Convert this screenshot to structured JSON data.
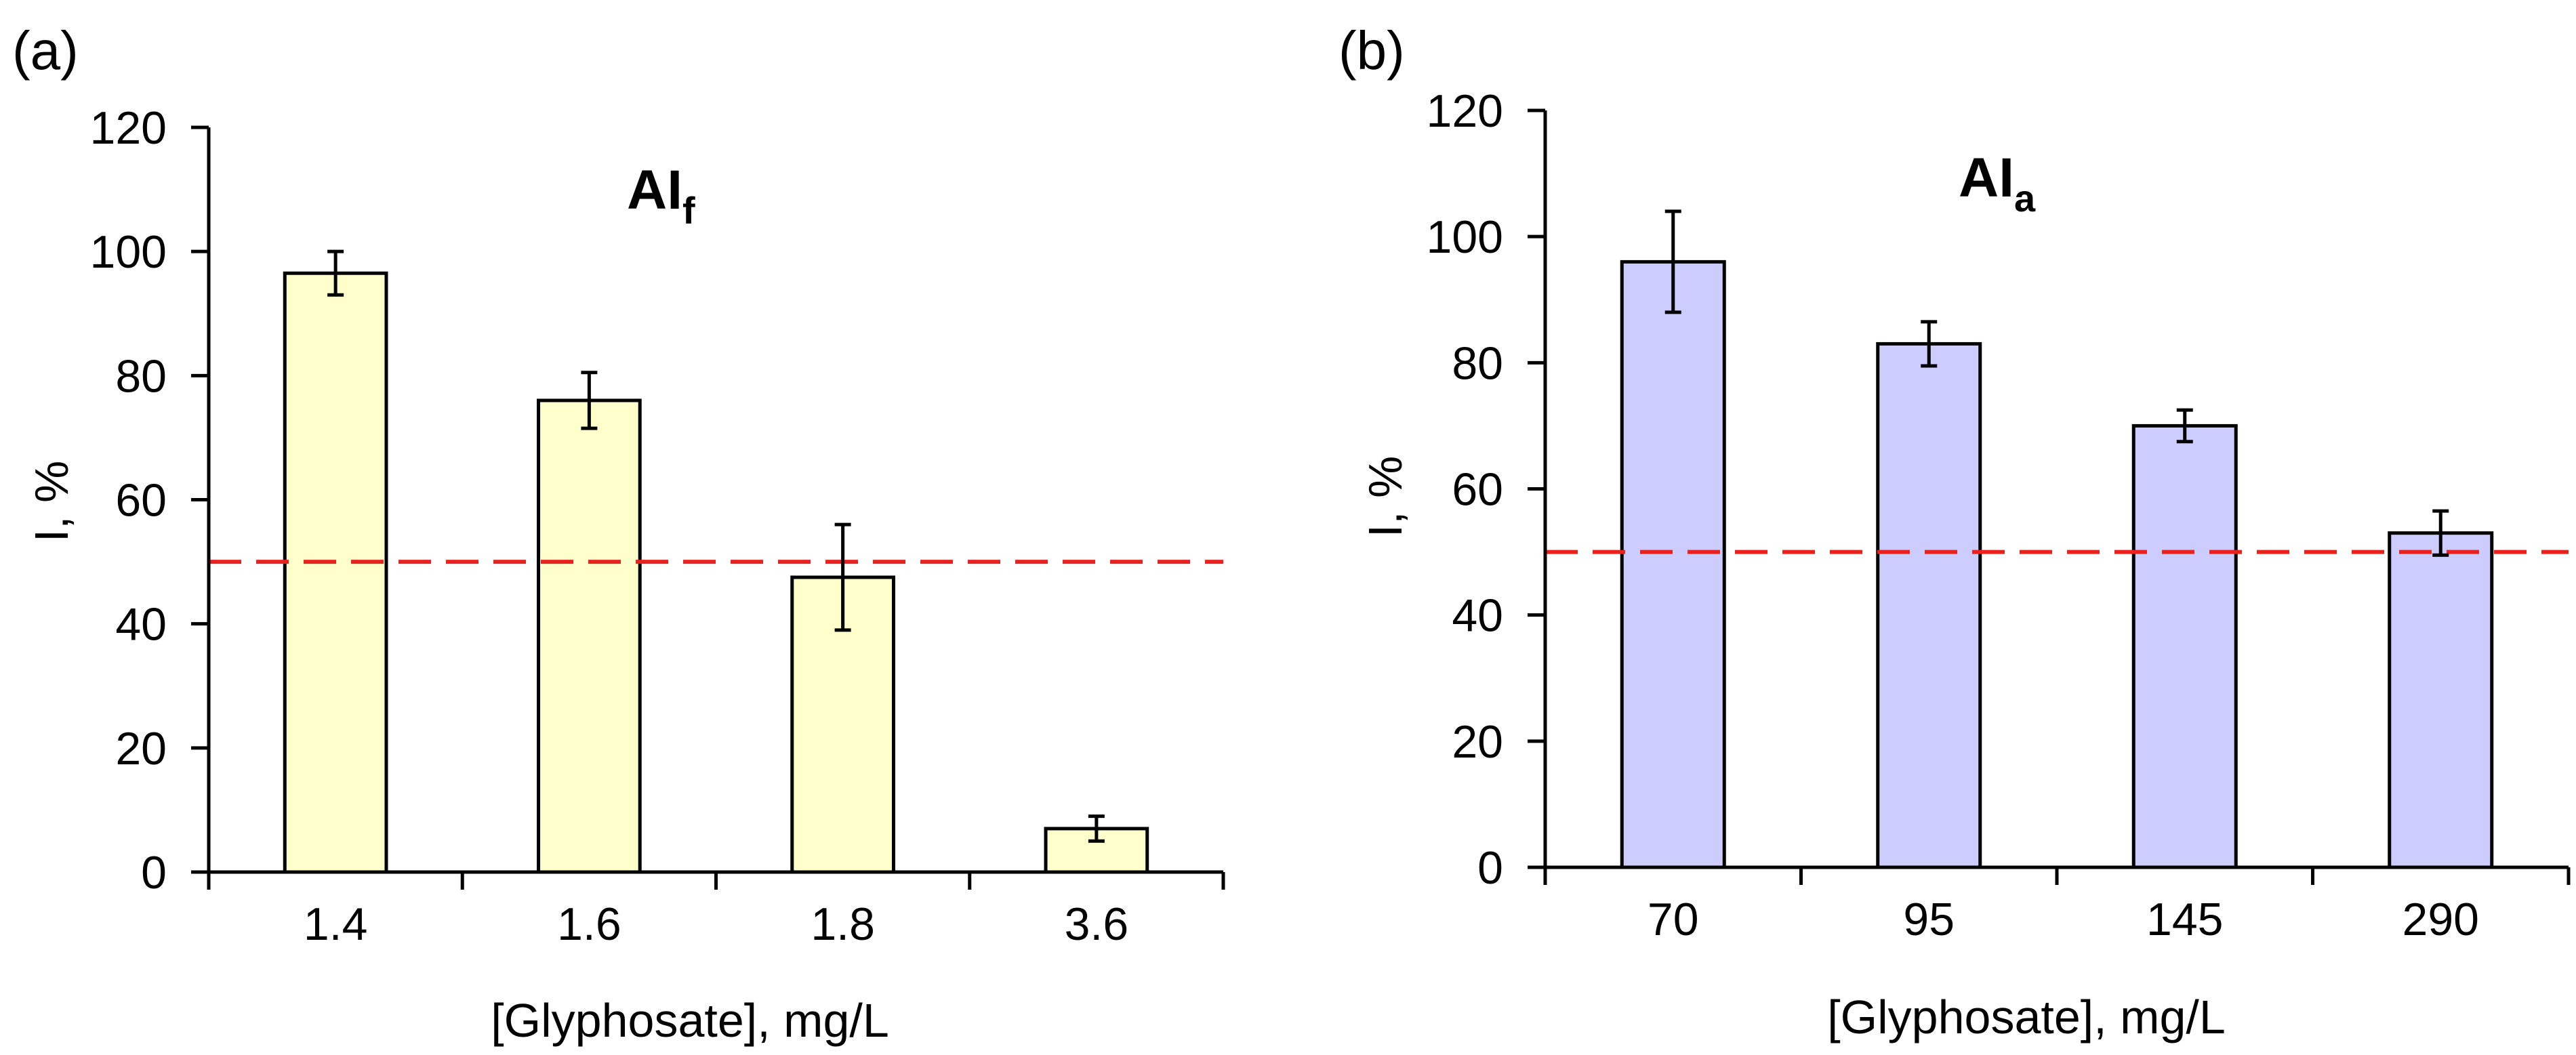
{
  "chart_data": [
    {
      "panel_label": "(a)",
      "type": "bar",
      "title": "AI",
      "title_subscript": "f",
      "xlabel": "[Glyphosate], mg/L",
      "ylabel": "I, %",
      "categories": [
        "1.4",
        "1.6",
        "1.8",
        "3.6"
      ],
      "values": [
        96.5,
        76,
        47.5,
        7
      ],
      "errors": [
        3.5,
        4.5,
        8.5,
        2
      ],
      "ylim": [
        0,
        120
      ],
      "yticks": [
        "0",
        "20",
        "40",
        "60",
        "80",
        "100",
        "120"
      ],
      "reference_line": 50,
      "bar_color": "#FFFFCC",
      "line_color": "#E8231E",
      "grid": false
    },
    {
      "panel_label": "(b)",
      "type": "bar",
      "title": "AI",
      "title_subscript": "a",
      "xlabel": "[Glyphosate], mg/L",
      "ylabel": "I, %",
      "categories": [
        "70",
        "95",
        "145",
        "290"
      ],
      "values": [
        96,
        83,
        70,
        53
      ],
      "errors": [
        8,
        3.5,
        2.5,
        3.5
      ],
      "ylim": [
        0,
        120
      ],
      "yticks": [
        "0",
        "20",
        "40",
        "60",
        "80",
        "100",
        "120"
      ],
      "reference_line": 50,
      "bar_color": "#CCCCFF",
      "line_color": "#E8231E",
      "grid": false
    }
  ]
}
